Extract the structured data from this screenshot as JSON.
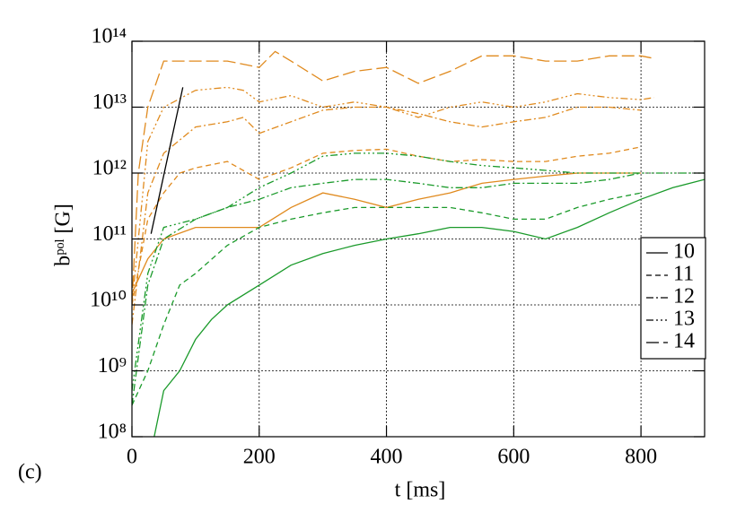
{
  "chart_data": {
    "type": "line",
    "xlabel": "t [ms]",
    "ylabel": "bᵖᵒˡ [G]",
    "annotation": "(c)",
    "log_y": true,
    "grid": true,
    "xlim": [
      0,
      900
    ],
    "xticks": [
      0,
      200,
      400,
      600,
      800
    ],
    "ylim": [
      100000000.0,
      100000000000000.0
    ],
    "yticks": [
      {
        "value": 100000000.0,
        "label": "10⁸"
      },
      {
        "value": 1000000000.0,
        "label": "10⁹"
      },
      {
        "value": 10000000000.0,
        "label": "10¹⁰"
      },
      {
        "value": 100000000000.0,
        "label": "10¹¹"
      },
      {
        "value": 1000000000000.0,
        "label": "10¹²"
      },
      {
        "value": 10000000000000.0,
        "label": "10¹³"
      },
      {
        "value": 100000000000000.0,
        "label": "10¹⁴"
      }
    ],
    "legend_position": "right",
    "legend": [
      {
        "label": "10",
        "dash": "none"
      },
      {
        "label": "11",
        "dash": "6,4"
      },
      {
        "label": "12",
        "dash": "8,3,2,3"
      },
      {
        "label": "13",
        "dash": "8,3,2,3,2,3,2,3"
      },
      {
        "label": "14",
        "dash": "14,5"
      }
    ],
    "series": [
      {
        "color": "#e08a1e",
        "dash": "14,5",
        "x": [
          0,
          10,
          25,
          50,
          100,
          150,
          200,
          225,
          250,
          300,
          350,
          400,
          450,
          500,
          550,
          600,
          650,
          700,
          750,
          800,
          820
        ],
        "values": [
          10000000000.0,
          1000000000000.0,
          10000000000000.0,
          50000000000000.0,
          50000000000000.0,
          50000000000000.0,
          40000000000000.0,
          70000000000000.0,
          50000000000000.0,
          25000000000000.0,
          35000000000000.0,
          40000000000000.0,
          23000000000000.0,
          35000000000000.0,
          60000000000000.0,
          60000000000000.0,
          50000000000000.0,
          50000000000000.0,
          60000000000000.0,
          60000000000000.0,
          55000000000000.0
        ]
      },
      {
        "color": "#e08a1e",
        "dash": "8,3,2,3,2,3,2,3",
        "x": [
          0,
          25,
          50,
          100,
          150,
          175,
          200,
          250,
          300,
          350,
          400,
          450,
          500,
          550,
          600,
          650,
          700,
          750,
          800,
          820
        ],
        "values": [
          10000000000.0,
          3000000000000.0,
          10000000000000.0,
          18000000000000.0,
          20000000000000.0,
          18000000000000.0,
          12000000000000.0,
          15000000000000.0,
          10000000000000.0,
          12000000000000.0,
          10000000000000.0,
          7000000000000.0,
          10000000000000.0,
          12000000000000.0,
          10000000000000.0,
          12000000000000.0,
          16000000000000.0,
          14000000000000.0,
          13000000000000.0,
          14000000000000.0
        ]
      },
      {
        "color": "#e08a1e",
        "dash": "8,3,2,3",
        "x": [
          0,
          25,
          50,
          100,
          150,
          175,
          200,
          250,
          300,
          350,
          400,
          450,
          500,
          550,
          600,
          650,
          700,
          750,
          800
        ],
        "values": [
          5000000000.0,
          500000000000.0,
          2000000000000.0,
          5000000000000.0,
          6000000000000.0,
          7000000000000.0,
          4000000000000.0,
          6000000000000.0,
          9000000000000.0,
          10000000000000.0,
          10000000000000.0,
          8000000000000.0,
          6000000000000.0,
          5000000000000.0,
          6000000000000.0,
          7000000000000.0,
          10000000000000.0,
          10000000000000.0,
          9000000000000.0
        ]
      },
      {
        "color": "#e08a1e",
        "dash": "6,4",
        "x": [
          0,
          25,
          50,
          75,
          100,
          150,
          200,
          250,
          300,
          350,
          400,
          450,
          500,
          550,
          600,
          650,
          700,
          750,
          800
        ],
        "values": [
          10000000000.0,
          200000000000.0,
          500000000000.0,
          1000000000000.0,
          1200000000000.0,
          1500000000000.0,
          800000000000.0,
          1200000000000.0,
          2000000000000.0,
          2200000000000.0,
          2300000000000.0,
          1800000000000.0,
          1500000000000.0,
          1600000000000.0,
          1500000000000.0,
          1500000000000.0,
          1800000000000.0,
          2000000000000.0,
          2500000000000.0
        ]
      },
      {
        "color": "#e08a1e",
        "dash": "none",
        "x": [
          0,
          25,
          50,
          100,
          150,
          200,
          250,
          300,
          350,
          400,
          450,
          500,
          550,
          600,
          650,
          700,
          750,
          800
        ],
        "values": [
          15000000000.0,
          50000000000.0,
          100000000000.0,
          150000000000.0,
          150000000000.0,
          150000000000.0,
          300000000000.0,
          500000000000.0,
          400000000000.0,
          300000000000.0,
          400000000000.0,
          500000000000.0,
          700000000000.0,
          800000000000.0,
          900000000000.0,
          1000000000000.0,
          1000000000000.0,
          1000000000000.0
        ]
      },
      {
        "color": "#1a9a2a",
        "dash": "none",
        "x": [
          35,
          50,
          75,
          100,
          125,
          150,
          200,
          250,
          300,
          350,
          400,
          450,
          500,
          550,
          600,
          650,
          700,
          750,
          800,
          850,
          900
        ],
        "values": [
          100000000.0,
          500000000.0,
          1000000000.0,
          3000000000.0,
          6000000000.0,
          10000000000.0,
          20000000000.0,
          40000000000.0,
          60000000000.0,
          80000000000.0,
          100000000000.0,
          120000000000.0,
          150000000000.0,
          150000000000.0,
          130000000000.0,
          100000000000.0,
          150000000000.0,
          250000000000.0,
          400000000000.0,
          600000000000.0,
          800000000000.0
        ]
      },
      {
        "color": "#1a9a2a",
        "dash": "6,4",
        "x": [
          0,
          25,
          50,
          75,
          100,
          150,
          200,
          250,
          300,
          350,
          400,
          450,
          500,
          550,
          600,
          650,
          700,
          750,
          800
        ],
        "values": [
          300000000.0,
          1000000000.0,
          5000000000.0,
          20000000000.0,
          30000000000.0,
          80000000000.0,
          150000000000.0,
          200000000000.0,
          250000000000.0,
          300000000000.0,
          300000000000.0,
          300000000000.0,
          300000000000.0,
          250000000000.0,
          200000000000.0,
          200000000000.0,
          300000000000.0,
          400000000000.0,
          500000000000.0
        ]
      },
      {
        "color": "#1a9a2a",
        "dash": "8,3,2,3",
        "x": [
          0,
          25,
          50,
          100,
          150,
          200,
          250,
          300,
          350,
          400,
          450,
          500,
          550,
          600,
          650,
          700,
          750,
          800
        ],
        "values": [
          300000000.0,
          20000000000.0,
          100000000000.0,
          200000000000.0,
          300000000000.0,
          400000000000.0,
          600000000000.0,
          700000000000.0,
          800000000000.0,
          800000000000.0,
          700000000000.0,
          600000000000.0,
          600000000000.0,
          700000000000.0,
          700000000000.0,
          700000000000.0,
          800000000000.0,
          1000000000000.0
        ]
      },
      {
        "color": "#1a9a2a",
        "dash": "8,3,2,3,2,3,2,3",
        "x": [
          0,
          25,
          50,
          100,
          150,
          200,
          250,
          300,
          350,
          400,
          450,
          500,
          550,
          600,
          650,
          700,
          750,
          800,
          850,
          900
        ],
        "values": [
          500000000.0,
          30000000000.0,
          150000000000.0,
          200000000000.0,
          300000000000.0,
          600000000000.0,
          1000000000000.0,
          1800000000000.0,
          2000000000000.0,
          2000000000000.0,
          1800000000000.0,
          1500000000000.0,
          1300000000000.0,
          1200000000000.0,
          1100000000000.0,
          1000000000000.0,
          1000000000000.0,
          1000000000000.0,
          1000000000000.0,
          1000000000000.0
        ]
      },
      {
        "color": "#000000",
        "dash": "none",
        "x": [
          30,
          80
        ],
        "values": [
          120000000000.0,
          20000000000000.0
        ]
      }
    ]
  }
}
